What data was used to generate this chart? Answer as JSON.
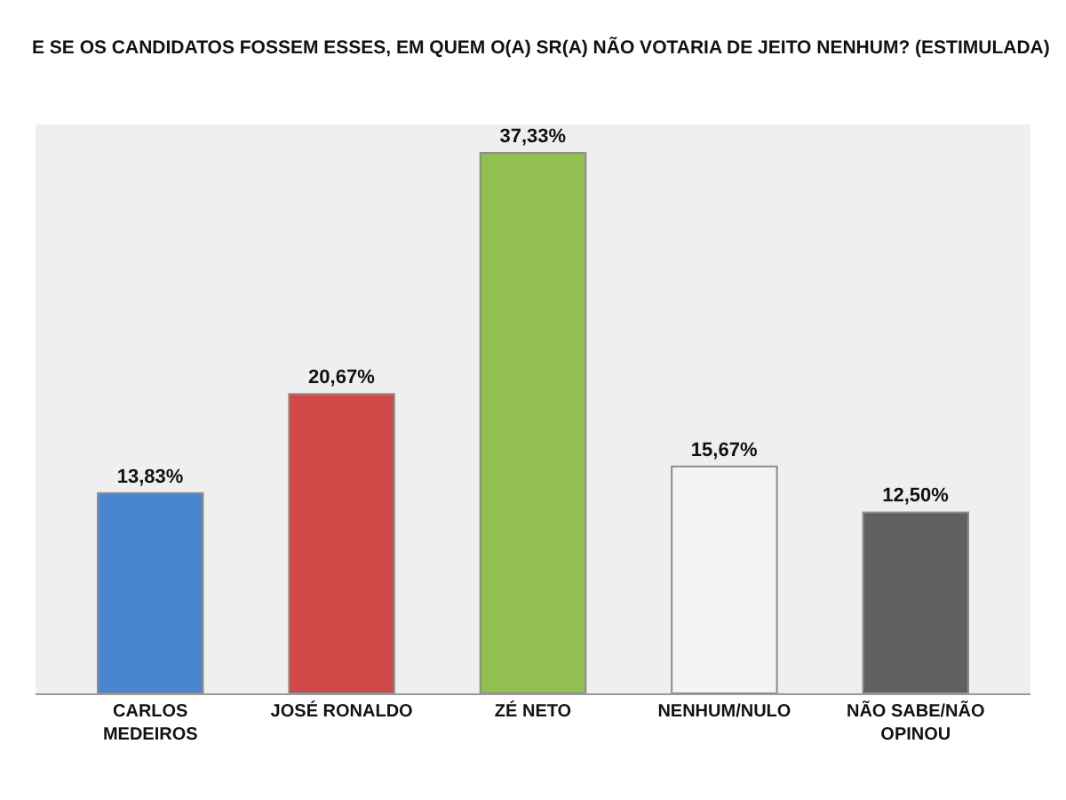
{
  "chart_data": {
    "type": "bar",
    "title": "E SE OS CANDIDATOS FOSSEM ESSES, EM QUEM O(A) SR(A) NÃO VOTARIA DE JEITO NENHUM? (ESTIMULADA)",
    "categories": [
      "CARLOS MEDEIROS",
      "JOSÉ RONALDO",
      "ZÉ NETO",
      "NENHUM/NULO",
      "NÃO SABE/NÃO OPINOU"
    ],
    "values": [
      13.83,
      20.67,
      37.33,
      15.67,
      12.5
    ],
    "value_labels": [
      "13,83%",
      "20,67%",
      "37,33%",
      "15,67%",
      "12,50%"
    ],
    "colors": [
      "#4a86d0",
      "#d04848",
      "#92c050",
      "#f4f4f4",
      "#606060"
    ]
  }
}
